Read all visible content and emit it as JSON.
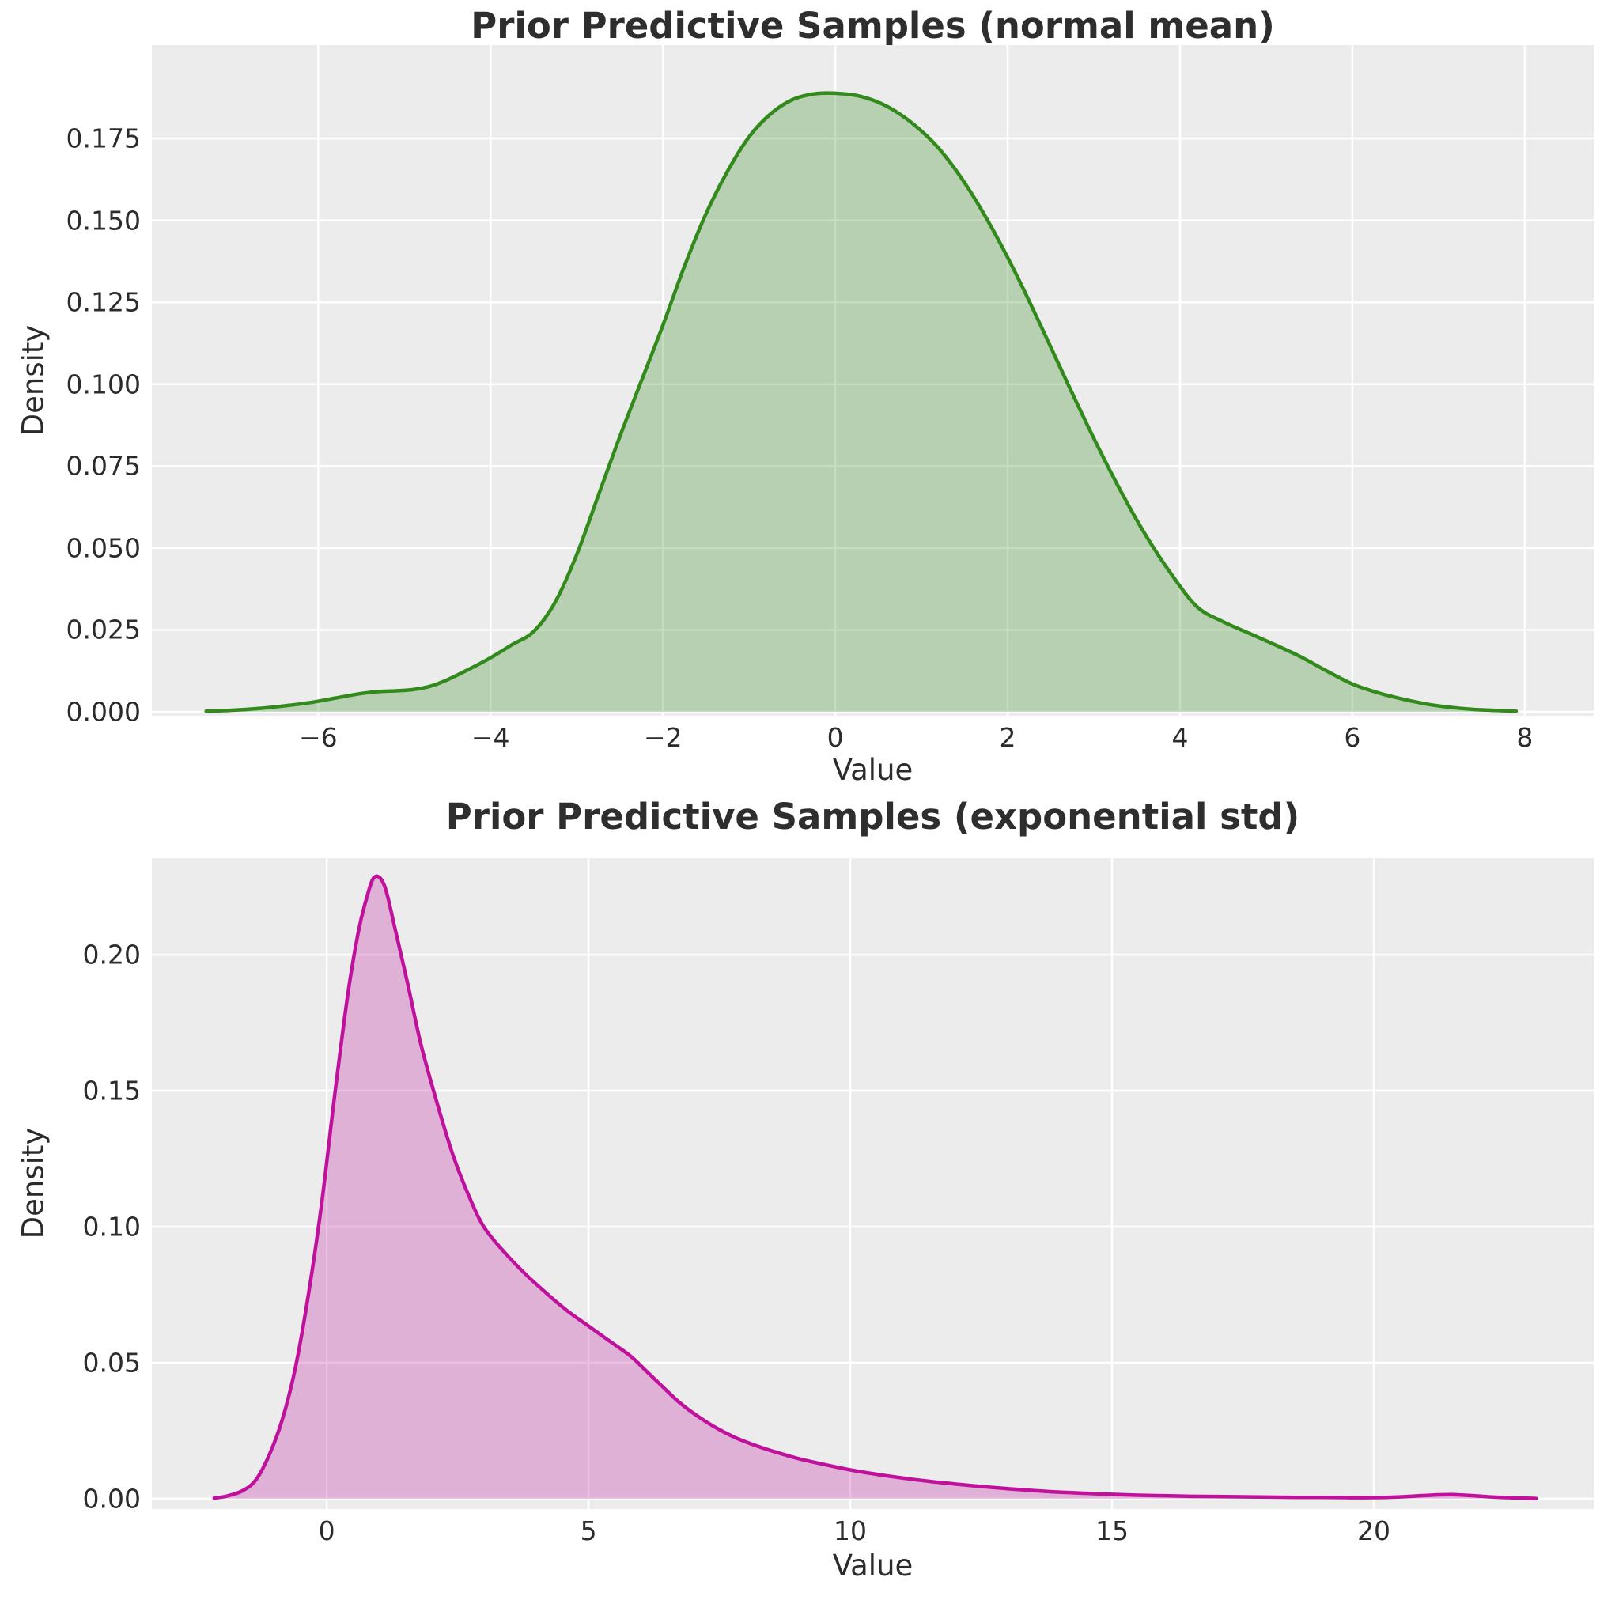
{
  "figure": {
    "background": "#ffffff",
    "axes_background": "#ececec",
    "grid_color": "#ffffff",
    "title_color": "#2e2e2e",
    "tick_color": "#2b2b2b"
  },
  "chart_data": [
    {
      "type": "area",
      "title": "Prior Predictive Samples (normal mean)",
      "xlabel": "Value",
      "ylabel": "Density",
      "legend": "none",
      "grid": "on",
      "line_color": "#338a1c",
      "fill_color": "rgba(51,138,28,0.28)",
      "xlim": [
        -7.93,
        8.8
      ],
      "ylim": [
        -0.0012,
        0.2035
      ],
      "x_ticks": [
        {
          "v": -6,
          "label": "−6"
        },
        {
          "v": -4,
          "label": "−4"
        },
        {
          "v": -2,
          "label": "−2"
        },
        {
          "v": 0,
          "label": "0"
        },
        {
          "v": 2,
          "label": "2"
        },
        {
          "v": 4,
          "label": "4"
        },
        {
          "v": 6,
          "label": "6"
        },
        {
          "v": 8,
          "label": "8"
        }
      ],
      "y_ticks": [
        {
          "v": 0.0,
          "label": "0.000"
        },
        {
          "v": 0.025,
          "label": "0.025"
        },
        {
          "v": 0.05,
          "label": "0.050"
        },
        {
          "v": 0.075,
          "label": "0.075"
        },
        {
          "v": 0.1,
          "label": "0.100"
        },
        {
          "v": 0.125,
          "label": "0.125"
        },
        {
          "v": 0.15,
          "label": "0.150"
        },
        {
          "v": 0.175,
          "label": "0.175"
        }
      ],
      "peak": {
        "x": 0.0,
        "density": 0.189
      },
      "points": [
        [
          -7.3,
          0.0002
        ],
        [
          -7.0,
          0.0005
        ],
        [
          -6.7,
          0.001
        ],
        [
          -6.4,
          0.0018
        ],
        [
          -6.1,
          0.0028
        ],
        [
          -5.8,
          0.0042
        ],
        [
          -5.5,
          0.0056
        ],
        [
          -5.3,
          0.0062
        ],
        [
          -5.1,
          0.0064
        ],
        [
          -4.9,
          0.0068
        ],
        [
          -4.7,
          0.0078
        ],
        [
          -4.5,
          0.0098
        ],
        [
          -4.25,
          0.013
        ],
        [
          -4.0,
          0.0165
        ],
        [
          -3.75,
          0.0205
        ],
        [
          -3.5,
          0.0245
        ],
        [
          -3.25,
          0.0335
        ],
        [
          -3.0,
          0.048
        ],
        [
          -2.75,
          0.066
        ],
        [
          -2.5,
          0.084
        ],
        [
          -2.25,
          0.101
        ],
        [
          -2.0,
          0.118
        ],
        [
          -1.75,
          0.136
        ],
        [
          -1.5,
          0.152
        ],
        [
          -1.25,
          0.165
        ],
        [
          -1.0,
          0.1755
        ],
        [
          -0.75,
          0.1825
        ],
        [
          -0.5,
          0.1868
        ],
        [
          -0.25,
          0.1886
        ],
        [
          0.0,
          0.1888
        ],
        [
          0.3,
          0.1878
        ],
        [
          0.6,
          0.1848
        ],
        [
          0.9,
          0.1795
        ],
        [
          1.2,
          0.172
        ],
        [
          1.5,
          0.1615
        ],
        [
          1.8,
          0.1485
        ],
        [
          2.1,
          0.1335
        ],
        [
          2.4,
          0.117
        ],
        [
          2.7,
          0.1
        ],
        [
          3.0,
          0.0835
        ],
        [
          3.3,
          0.068
        ],
        [
          3.6,
          0.054
        ],
        [
          3.9,
          0.042
        ],
        [
          4.2,
          0.032
        ],
        [
          4.5,
          0.0275
        ],
        [
          4.8,
          0.024
        ],
        [
          5.1,
          0.0205
        ],
        [
          5.4,
          0.0168
        ],
        [
          5.7,
          0.0125
        ],
        [
          6.0,
          0.0085
        ],
        [
          6.3,
          0.0058
        ],
        [
          6.6,
          0.0038
        ],
        [
          6.9,
          0.0022
        ],
        [
          7.2,
          0.0012
        ],
        [
          7.5,
          0.0006
        ],
        [
          7.9,
          0.0002
        ]
      ]
    },
    {
      "type": "area",
      "title": "Prior Predictive Samples (exponential std)",
      "xlabel": "Value",
      "ylabel": "Density",
      "legend": "none",
      "grid": "on",
      "line_color": "#c0119c",
      "fill_color": "rgba(192,17,156,0.27)",
      "xlim": [
        -3.34,
        24.2
      ],
      "ylim": [
        -0.0038,
        0.2355
      ],
      "x_ticks": [
        {
          "v": 0,
          "label": "0"
        },
        {
          "v": 5,
          "label": "5"
        },
        {
          "v": 10,
          "label": "10"
        },
        {
          "v": 15,
          "label": "15"
        },
        {
          "v": 20,
          "label": "20"
        }
      ],
      "y_ticks": [
        {
          "v": 0.0,
          "label": "0.00"
        },
        {
          "v": 0.05,
          "label": "0.05"
        },
        {
          "v": 0.1,
          "label": "0.10"
        },
        {
          "v": 0.15,
          "label": "0.15"
        },
        {
          "v": 0.2,
          "label": "0.20"
        }
      ],
      "peak": {
        "x": 0.9,
        "density": 0.2285
      },
      "points": [
        [
          -2.15,
          0.0002
        ],
        [
          -1.9,
          0.001
        ],
        [
          -1.6,
          0.003
        ],
        [
          -1.35,
          0.007
        ],
        [
          -1.1,
          0.016
        ],
        [
          -0.85,
          0.029
        ],
        [
          -0.6,
          0.048
        ],
        [
          -0.35,
          0.075
        ],
        [
          -0.1,
          0.108
        ],
        [
          0.15,
          0.148
        ],
        [
          0.4,
          0.185
        ],
        [
          0.6,
          0.208
        ],
        [
          0.75,
          0.22
        ],
        [
          0.91,
          0.2285
        ],
        [
          1.1,
          0.2255
        ],
        [
          1.3,
          0.21
        ],
        [
          1.55,
          0.189
        ],
        [
          1.8,
          0.167
        ],
        [
          2.1,
          0.146
        ],
        [
          2.4,
          0.127
        ],
        [
          2.7,
          0.112
        ],
        [
          3.0,
          0.1
        ],
        [
          3.4,
          0.0905
        ],
        [
          3.8,
          0.0825
        ],
        [
          4.2,
          0.0755
        ],
        [
          4.6,
          0.069
        ],
        [
          5.0,
          0.0635
        ],
        [
          5.4,
          0.058
        ],
        [
          5.8,
          0.0525
        ],
        [
          6.1,
          0.047
        ],
        [
          6.4,
          0.0415
        ],
        [
          6.7,
          0.036
        ],
        [
          7.0,
          0.0315
        ],
        [
          7.4,
          0.0265
        ],
        [
          7.8,
          0.0225
        ],
        [
          8.2,
          0.0195
        ],
        [
          8.6,
          0.017
        ],
        [
          9.0,
          0.0148
        ],
        [
          9.5,
          0.0126
        ],
        [
          10.0,
          0.0106
        ],
        [
          10.5,
          0.009
        ],
        [
          11.0,
          0.0076
        ],
        [
          11.5,
          0.0064
        ],
        [
          12.0,
          0.0054
        ],
        [
          12.5,
          0.0045
        ],
        [
          13.0,
          0.0037
        ],
        [
          13.5,
          0.003
        ],
        [
          14.0,
          0.0024
        ],
        [
          14.5,
          0.002
        ],
        [
          15.0,
          0.0016
        ],
        [
          15.5,
          0.0013
        ],
        [
          16.0,
          0.0011
        ],
        [
          16.5,
          0.0009
        ],
        [
          17.0,
          0.0008
        ],
        [
          17.5,
          0.0007
        ],
        [
          18.0,
          0.0006
        ],
        [
          18.5,
          0.0005
        ],
        [
          19.0,
          0.0005
        ],
        [
          19.5,
          0.0004
        ],
        [
          20.0,
          0.0004
        ],
        [
          20.4,
          0.0006
        ],
        [
          20.8,
          0.001
        ],
        [
          21.2,
          0.0014
        ],
        [
          21.5,
          0.0015
        ],
        [
          21.9,
          0.0011
        ],
        [
          22.3,
          0.0006
        ],
        [
          22.7,
          0.0003
        ],
        [
          23.1,
          0.0001
        ]
      ]
    }
  ]
}
